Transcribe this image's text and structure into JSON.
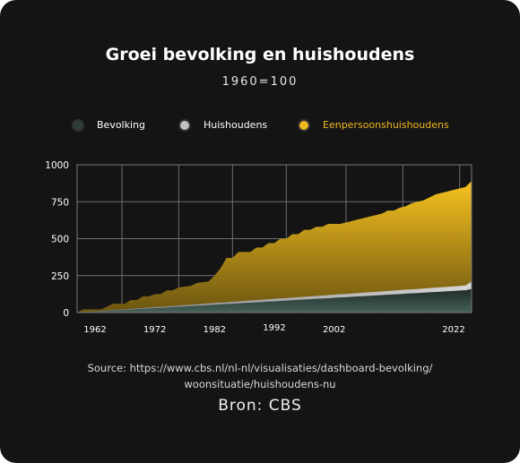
{
  "page": {
    "title": "Groei bevolking en huishoudens",
    "subtitle": "1960=100",
    "source_line1": "Source: https://www.cbs.nl/nl-nl/visualisaties/dashboard-bevolking/",
    "source_line2": "woonsituatie/huishoudens-nu",
    "bron": "Bron: CBS"
  },
  "legend": [
    {
      "label": "Bevolking",
      "color": "#2f3d3a",
      "text_color": "#ffffff"
    },
    {
      "label": "Huishoudens",
      "color": "#c2c2c2",
      "text_color": "#ffffff"
    },
    {
      "label": "Eenpersoonshuishoudens",
      "color": "#f0b81e",
      "text_color": "#f0b81e"
    }
  ],
  "chart_data": {
    "type": "area",
    "title": "Groei bevolking en huishoudens",
    "subtitle": "1960=100",
    "xlim": [
      1959,
      2025
    ],
    "ylim": [
      0,
      1000
    ],
    "yticks": [
      0,
      250,
      500,
      750,
      1000
    ],
    "xticks": [
      1962,
      1972,
      1982,
      1992,
      2002,
      2022
    ],
    "grid": true,
    "legend_position": "top",
    "x": [
      1959,
      1960,
      1961,
      1962,
      1963,
      1964,
      1965,
      1966,
      1967,
      1968,
      1969,
      1970,
      1971,
      1972,
      1973,
      1974,
      1975,
      1976,
      1977,
      1978,
      1979,
      1980,
      1981,
      1982,
      1983,
      1984,
      1985,
      1986,
      1987,
      1988,
      1989,
      1990,
      1991,
      1992,
      1993,
      1994,
      1995,
      1996,
      1997,
      1998,
      1999,
      2000,
      2001,
      2002,
      2003,
      2004,
      2005,
      2006,
      2007,
      2008,
      2009,
      2010,
      2011,
      2012,
      2013,
      2014,
      2015,
      2016,
      2017,
      2018,
      2019,
      2020,
      2021,
      2022,
      2023,
      2024,
      2025
    ],
    "series": [
      {
        "name": "Bevolking",
        "color": "#2f3d3a",
        "values": [
          0,
          2,
          4,
          6,
          9,
          11,
          13,
          16,
          18,
          20,
          23,
          25,
          27,
          30,
          32,
          34,
          37,
          39,
          41,
          44,
          46,
          48,
          51,
          53,
          55,
          58,
          60,
          62,
          65,
          67,
          69,
          72,
          74,
          76,
          79,
          81,
          83,
          86,
          88,
          90,
          93,
          95,
          97,
          100,
          102,
          104,
          107,
          109,
          111,
          114,
          116,
          118,
          121,
          123,
          125,
          128,
          130,
          132,
          135,
          137,
          139,
          142,
          144,
          146,
          149,
          151,
          160
        ]
      },
      {
        "name": "Huishoudens",
        "color": "#c2c2c2",
        "values": [
          0,
          3,
          6,
          8,
          11,
          14,
          17,
          20,
          22,
          25,
          28,
          31,
          34,
          37,
          39,
          42,
          45,
          48,
          51,
          53,
          56,
          59,
          62,
          65,
          68,
          70,
          73,
          76,
          79,
          82,
          84,
          87,
          90,
          93,
          96,
          98,
          101,
          104,
          107,
          110,
          112,
          115,
          118,
          121,
          124,
          126,
          129,
          132,
          135,
          138,
          140,
          143,
          146,
          149,
          152,
          155,
          157,
          160,
          163,
          166,
          169,
          171,
          174,
          177,
          180,
          183,
          210
        ]
      },
      {
        "name": "Eenpersoonshuishoudens",
        "color": "#f0b81e",
        "values": [
          0,
          22,
          22,
          22,
          22,
          40,
          60,
          60,
          60,
          85,
          85,
          110,
          110,
          125,
          125,
          150,
          150,
          170,
          175,
          180,
          200,
          205,
          210,
          250,
          300,
          370,
          370,
          410,
          410,
          410,
          440,
          440,
          470,
          470,
          500,
          500,
          530,
          530,
          560,
          560,
          580,
          580,
          600,
          600,
          600,
          610,
          620,
          630,
          640,
          650,
          660,
          670,
          690,
          690,
          710,
          720,
          740,
          750,
          760,
          780,
          800,
          810,
          820,
          830,
          840,
          850,
          890
        ]
      }
    ]
  }
}
